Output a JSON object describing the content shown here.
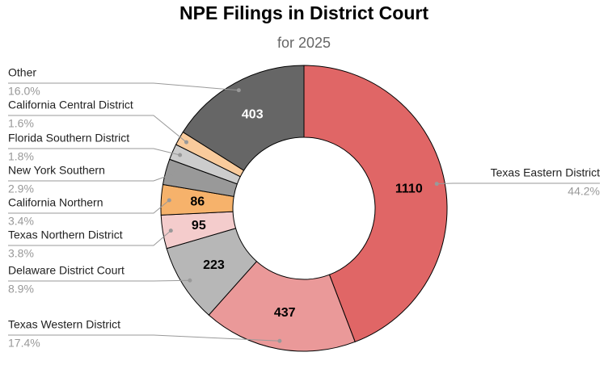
{
  "chart_data": {
    "type": "donut",
    "title": "NPE Filings in District Court",
    "subtitle": "for 2025",
    "categories": [
      "Texas Eastern District",
      "Texas Western District",
      "Delaware District Court",
      "Texas Northern District",
      "California Northern",
      "New York Southern",
      "Florida Southern District",
      "California Central District",
      "Other"
    ],
    "values": [
      1110,
      437,
      223,
      95,
      86,
      73,
      45,
      40,
      403
    ],
    "percents": [
      {
        "value": 44.2,
        "label": "44.2%"
      },
      {
        "value": 17.4,
        "label": "17.4%"
      },
      {
        "value": 8.9,
        "label": "8.9%"
      },
      {
        "value": 3.8,
        "label": "3.8%"
      },
      {
        "value": 3.4,
        "label": "3.4%"
      },
      {
        "value": 2.9,
        "label": "2.9%"
      },
      {
        "value": 1.8,
        "label": "1.8%"
      },
      {
        "value": 1.6,
        "label": "1.6%"
      },
      {
        "value": 16.0,
        "label": "16.0%"
      }
    ],
    "colors": [
      "#e06666",
      "#ea9999",
      "#b7b7b7",
      "#f4cccc",
      "#f6b26b",
      "#999999",
      "#cccccc",
      "#f9cb9c",
      "#666666"
    ]
  }
}
